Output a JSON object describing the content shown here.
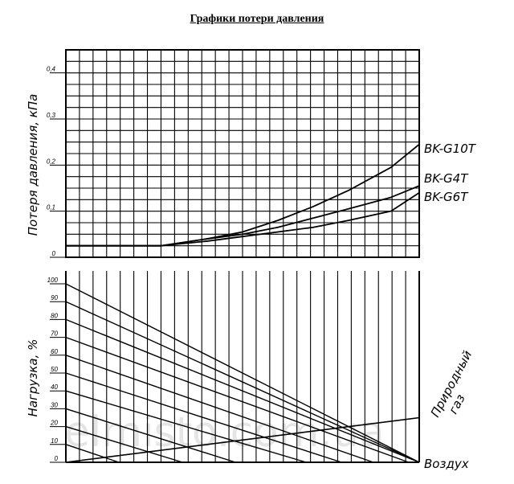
{
  "title": "Графики потери давления",
  "watermark": "elmisto.com.ua",
  "chart_data": [
    {
      "type": "line",
      "ylabel": "Потеря давления, кПа",
      "y_ticks": [
        "0",
        "0,1",
        "0,2",
        "0,3",
        "0,4"
      ],
      "ylim": [
        0,
        0.45
      ],
      "xlim": [
        0,
        100
      ],
      "series": [
        {
          "name": "BK-G10T",
          "x": [
            0,
            27,
            40,
            50,
            60,
            70,
            80,
            92,
            100
          ],
          "y": [
            0.025,
            0.025,
            0.04,
            0.055,
            0.08,
            0.11,
            0.145,
            0.195,
            0.245
          ]
        },
        {
          "name": "BK-G4T",
          "x": [
            0,
            27,
            40,
            50,
            60,
            70,
            80,
            92,
            100
          ],
          "y": [
            0.025,
            0.025,
            0.04,
            0.05,
            0.065,
            0.085,
            0.105,
            0.13,
            0.155
          ]
        },
        {
          "name": "BK-G6T",
          "x": [
            0,
            27,
            40,
            50,
            60,
            70,
            80,
            92,
            100
          ],
          "y": [
            0.025,
            0.025,
            0.035,
            0.045,
            0.055,
            0.065,
            0.08,
            0.1,
            0.14
          ]
        }
      ]
    },
    {
      "type": "line",
      "ylabel": "Нагрузка, %",
      "y_ticks": [
        "0",
        "10",
        "20",
        "30",
        "40",
        "50",
        "60",
        "70",
        "80",
        "90",
        "100"
      ],
      "ylim": [
        0,
        100
      ],
      "xlim": [
        0,
        100
      ],
      "gas_label": [
        "Природный",
        "газ"
      ],
      "air_label": "Воздух",
      "gas_line": {
        "x": [
          0,
          100
        ],
        "y": [
          0,
          25
        ]
      },
      "air_lines": [
        {
          "load": 100,
          "end_x": 100
        },
        {
          "load": 90,
          "end_x": 100
        },
        {
          "load": 80,
          "end_x": 100
        },
        {
          "load": 70,
          "end_x": 97
        },
        {
          "load": 60,
          "end_x": 87
        },
        {
          "load": 50,
          "end_x": 78
        },
        {
          "load": 40,
          "end_x": 68
        },
        {
          "load": 30,
          "end_x": 48
        },
        {
          "load": 20,
          "end_x": 33
        },
        {
          "load": 10,
          "end_x": 15
        }
      ]
    }
  ]
}
